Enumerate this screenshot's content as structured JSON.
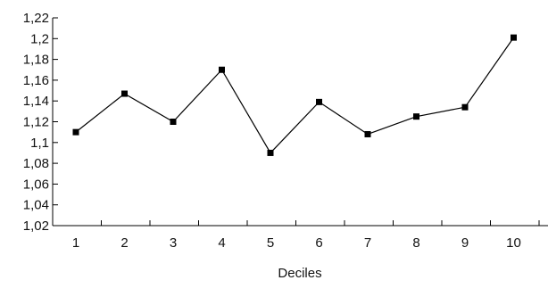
{
  "chart_data": {
    "type": "line",
    "title": "",
    "xlabel": "Deciles",
    "ylabel": "",
    "x": [
      1,
      2,
      3,
      4,
      5,
      6,
      7,
      8,
      9,
      10
    ],
    "x_tick_labels": [
      "1",
      "2",
      "3",
      "4",
      "5",
      "6",
      "7",
      "8",
      "9",
      "10"
    ],
    "series": [
      {
        "values": [
          1.11,
          1.147,
          1.12,
          1.17,
          1.09,
          1.139,
          1.108,
          1.125,
          1.134,
          1.201
        ]
      }
    ],
    "ylim": [
      1.02,
      1.22
    ],
    "y_ticks": [
      1.02,
      1.04,
      1.06,
      1.08,
      1.1,
      1.12,
      1.14,
      1.16,
      1.18,
      1.2,
      1.22
    ],
    "y_tick_labels": [
      "1,02",
      "1,04",
      "1,06",
      "1,08",
      "1,1",
      "1,12",
      "1,14",
      "1,16",
      "1,18",
      "1,2",
      "1,22"
    ],
    "grid": false,
    "legend": "none",
    "marker": "square",
    "line_color": "#000000",
    "marker_color": "#000000"
  }
}
